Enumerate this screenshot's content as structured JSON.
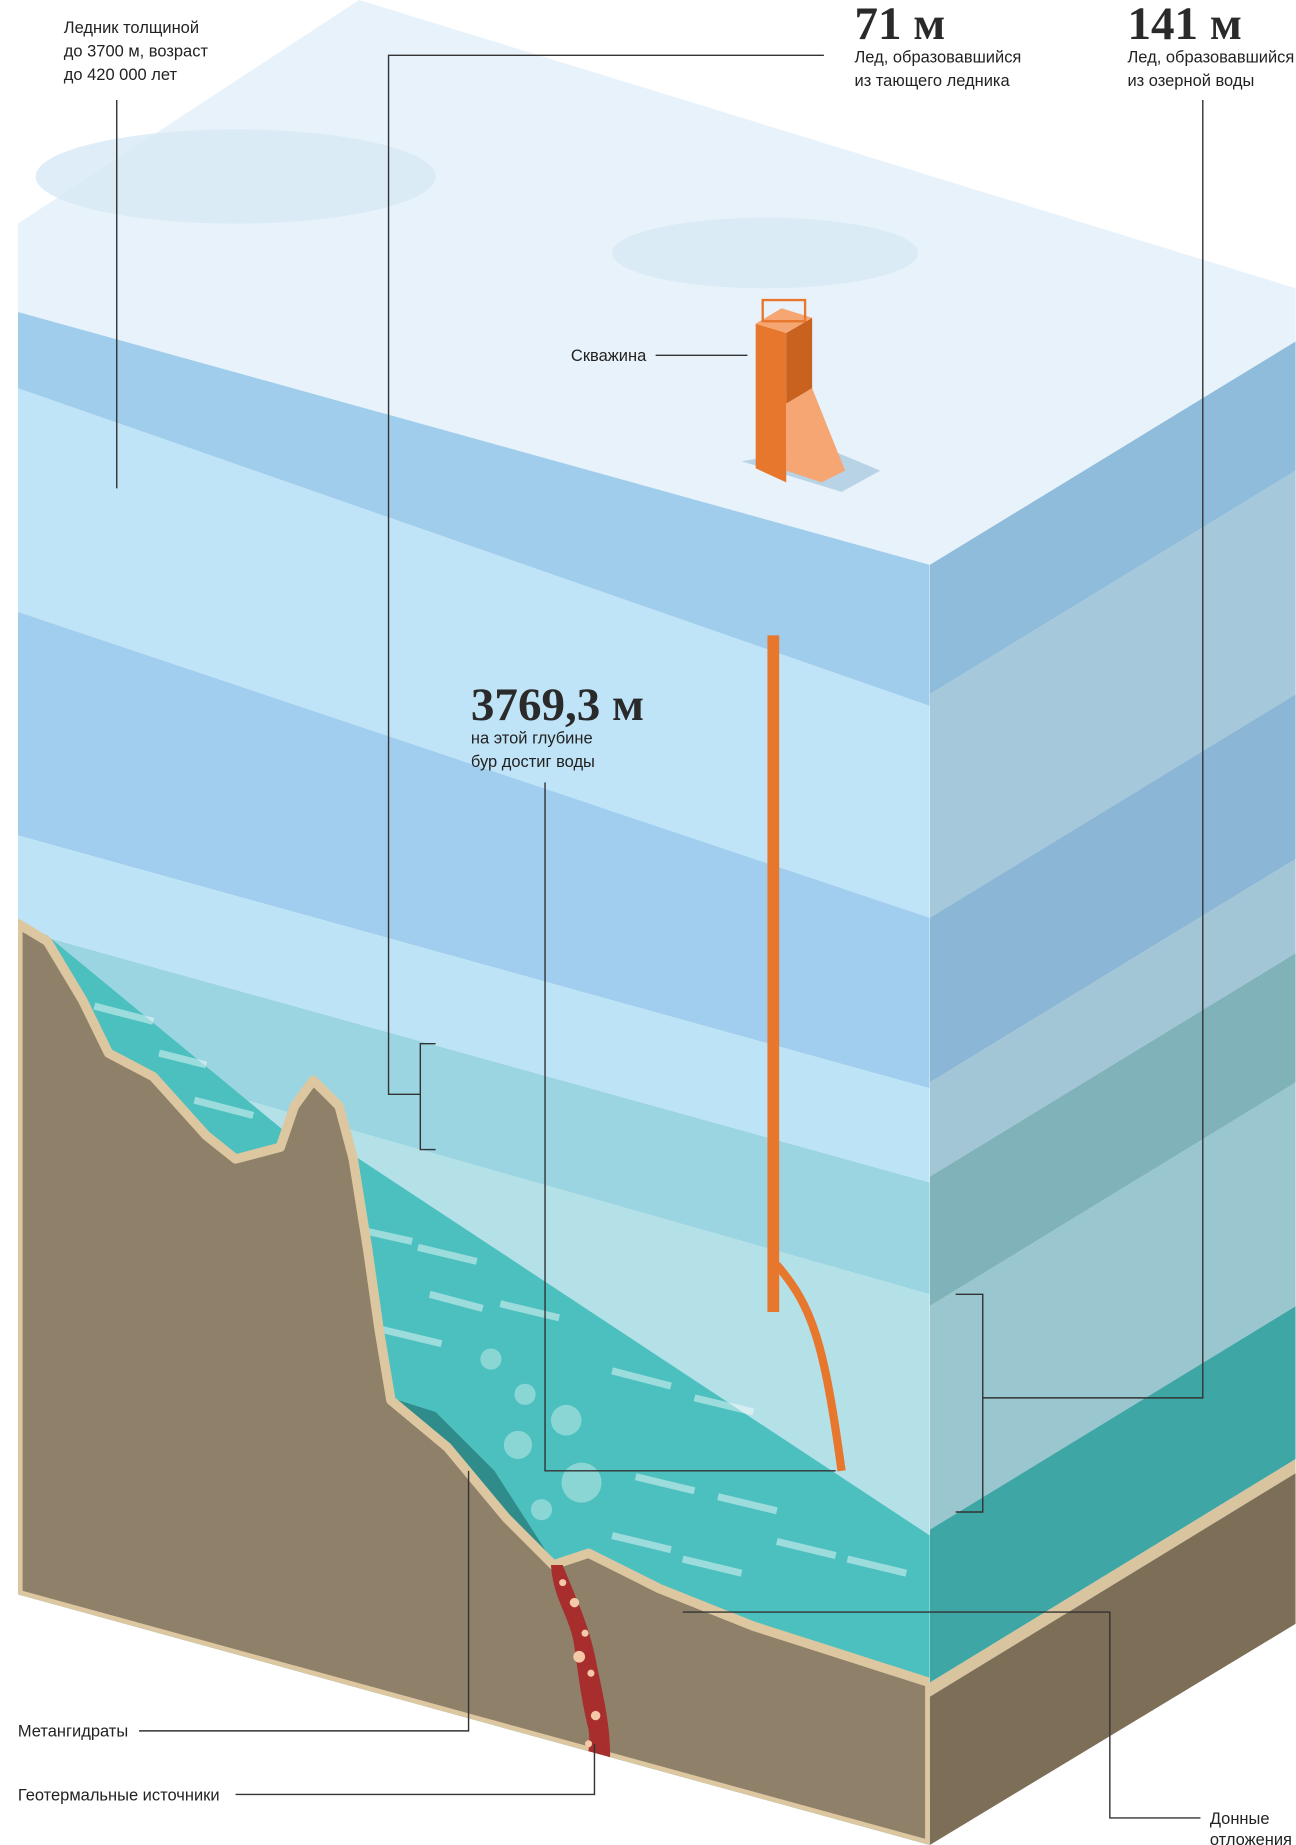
{
  "annotations": {
    "glacier": {
      "lines": [
        "Ледник толщиной",
        "до 3700 м, возраст",
        "до 420 000 лет"
      ]
    },
    "ice_melt": {
      "value": "71 м",
      "lines": [
        "Лед, образовавшийся",
        "из тающего ледника"
      ]
    },
    "ice_lake": {
      "value": "141 м",
      "lines": [
        "Лед, образовавшийся",
        "из озерной воды"
      ]
    },
    "borehole": {
      "label": "Скважина"
    },
    "depth": {
      "value": "3769,3 м",
      "lines": [
        "на этой глубине",
        "бур достиг воды"
      ]
    },
    "methane": {
      "label": "Метангидраты"
    },
    "geothermal": {
      "label": "Геотермальные источники"
    },
    "sediments": {
      "lines": [
        "Донные",
        "отложения"
      ]
    }
  }
}
